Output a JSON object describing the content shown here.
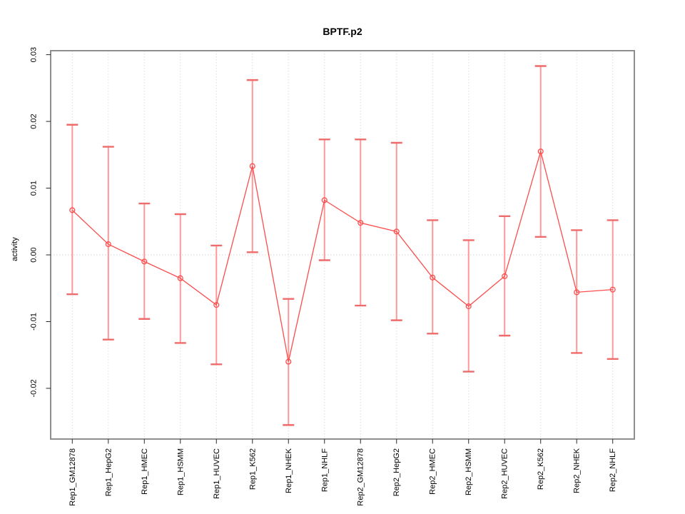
{
  "chart_data": {
    "type": "line",
    "title": "BPTF.p2",
    "ylabel": "activity",
    "xlabel": "",
    "categories": [
      "Rep1_GM12878",
      "Rep1_HepG2",
      "Rep1_HMEC",
      "Rep1_HSMM",
      "Rep1_HUVEC",
      "Rep1_K562",
      "Rep1_NHEK",
      "Rep1_NHLF",
      "Rep2_GM12878",
      "Rep2_HepG2",
      "Rep2_HMEC",
      "Rep2_HSMM",
      "Rep2_HUVEC",
      "Rep2_K562",
      "Rep2_NHEK",
      "Rep2_NHLF"
    ],
    "series": [
      {
        "name": "activity",
        "values": [
          0.0067,
          0.0016,
          -0.001,
          -0.0035,
          -0.0075,
          0.0133,
          -0.016,
          0.0082,
          0.0048,
          0.0035,
          -0.0034,
          -0.0077,
          -0.0032,
          0.0155,
          -0.0056,
          -0.0052
        ],
        "upper": [
          0.0195,
          0.0162,
          0.0077,
          0.0061,
          0.0014,
          0.0262,
          -0.0066,
          0.0173,
          0.0173,
          0.0168,
          0.0052,
          0.0022,
          0.0058,
          0.0283,
          0.0037,
          0.0052
        ],
        "lower": [
          -0.0059,
          -0.0127,
          -0.0096,
          -0.0132,
          -0.0164,
          0.0004,
          -0.0255,
          -0.0008,
          -0.0076,
          -0.0098,
          -0.0118,
          -0.0175,
          -0.0121,
          0.0027,
          -0.0147,
          -0.0156
        ]
      }
    ],
    "y_ticks": [
      -0.02,
      -0.01,
      0,
      0.01,
      0.02,
      0.03
    ],
    "y_tick_labels": [
      "-0.02",
      "-0.01",
      "0.00",
      "0.01",
      "0.02",
      "0.03"
    ],
    "ylim": [
      -0.0276,
      0.0306
    ],
    "xlim": [
      0.4,
      16.6
    ],
    "grid": {
      "vertical_at_categories": true,
      "horizontal_at_zero": true
    },
    "legend": "none",
    "colors": {
      "line": "#fb4d4d",
      "point": "#fb4d4d",
      "error_stem": "#ff9898",
      "error_cap": "#ee6b6b",
      "grid": "#dedede",
      "zero_line": "#d6d6d6",
      "box": "#828282",
      "tick": "#2b2b2b",
      "text": "#000000",
      "background": "#ffffff"
    }
  }
}
